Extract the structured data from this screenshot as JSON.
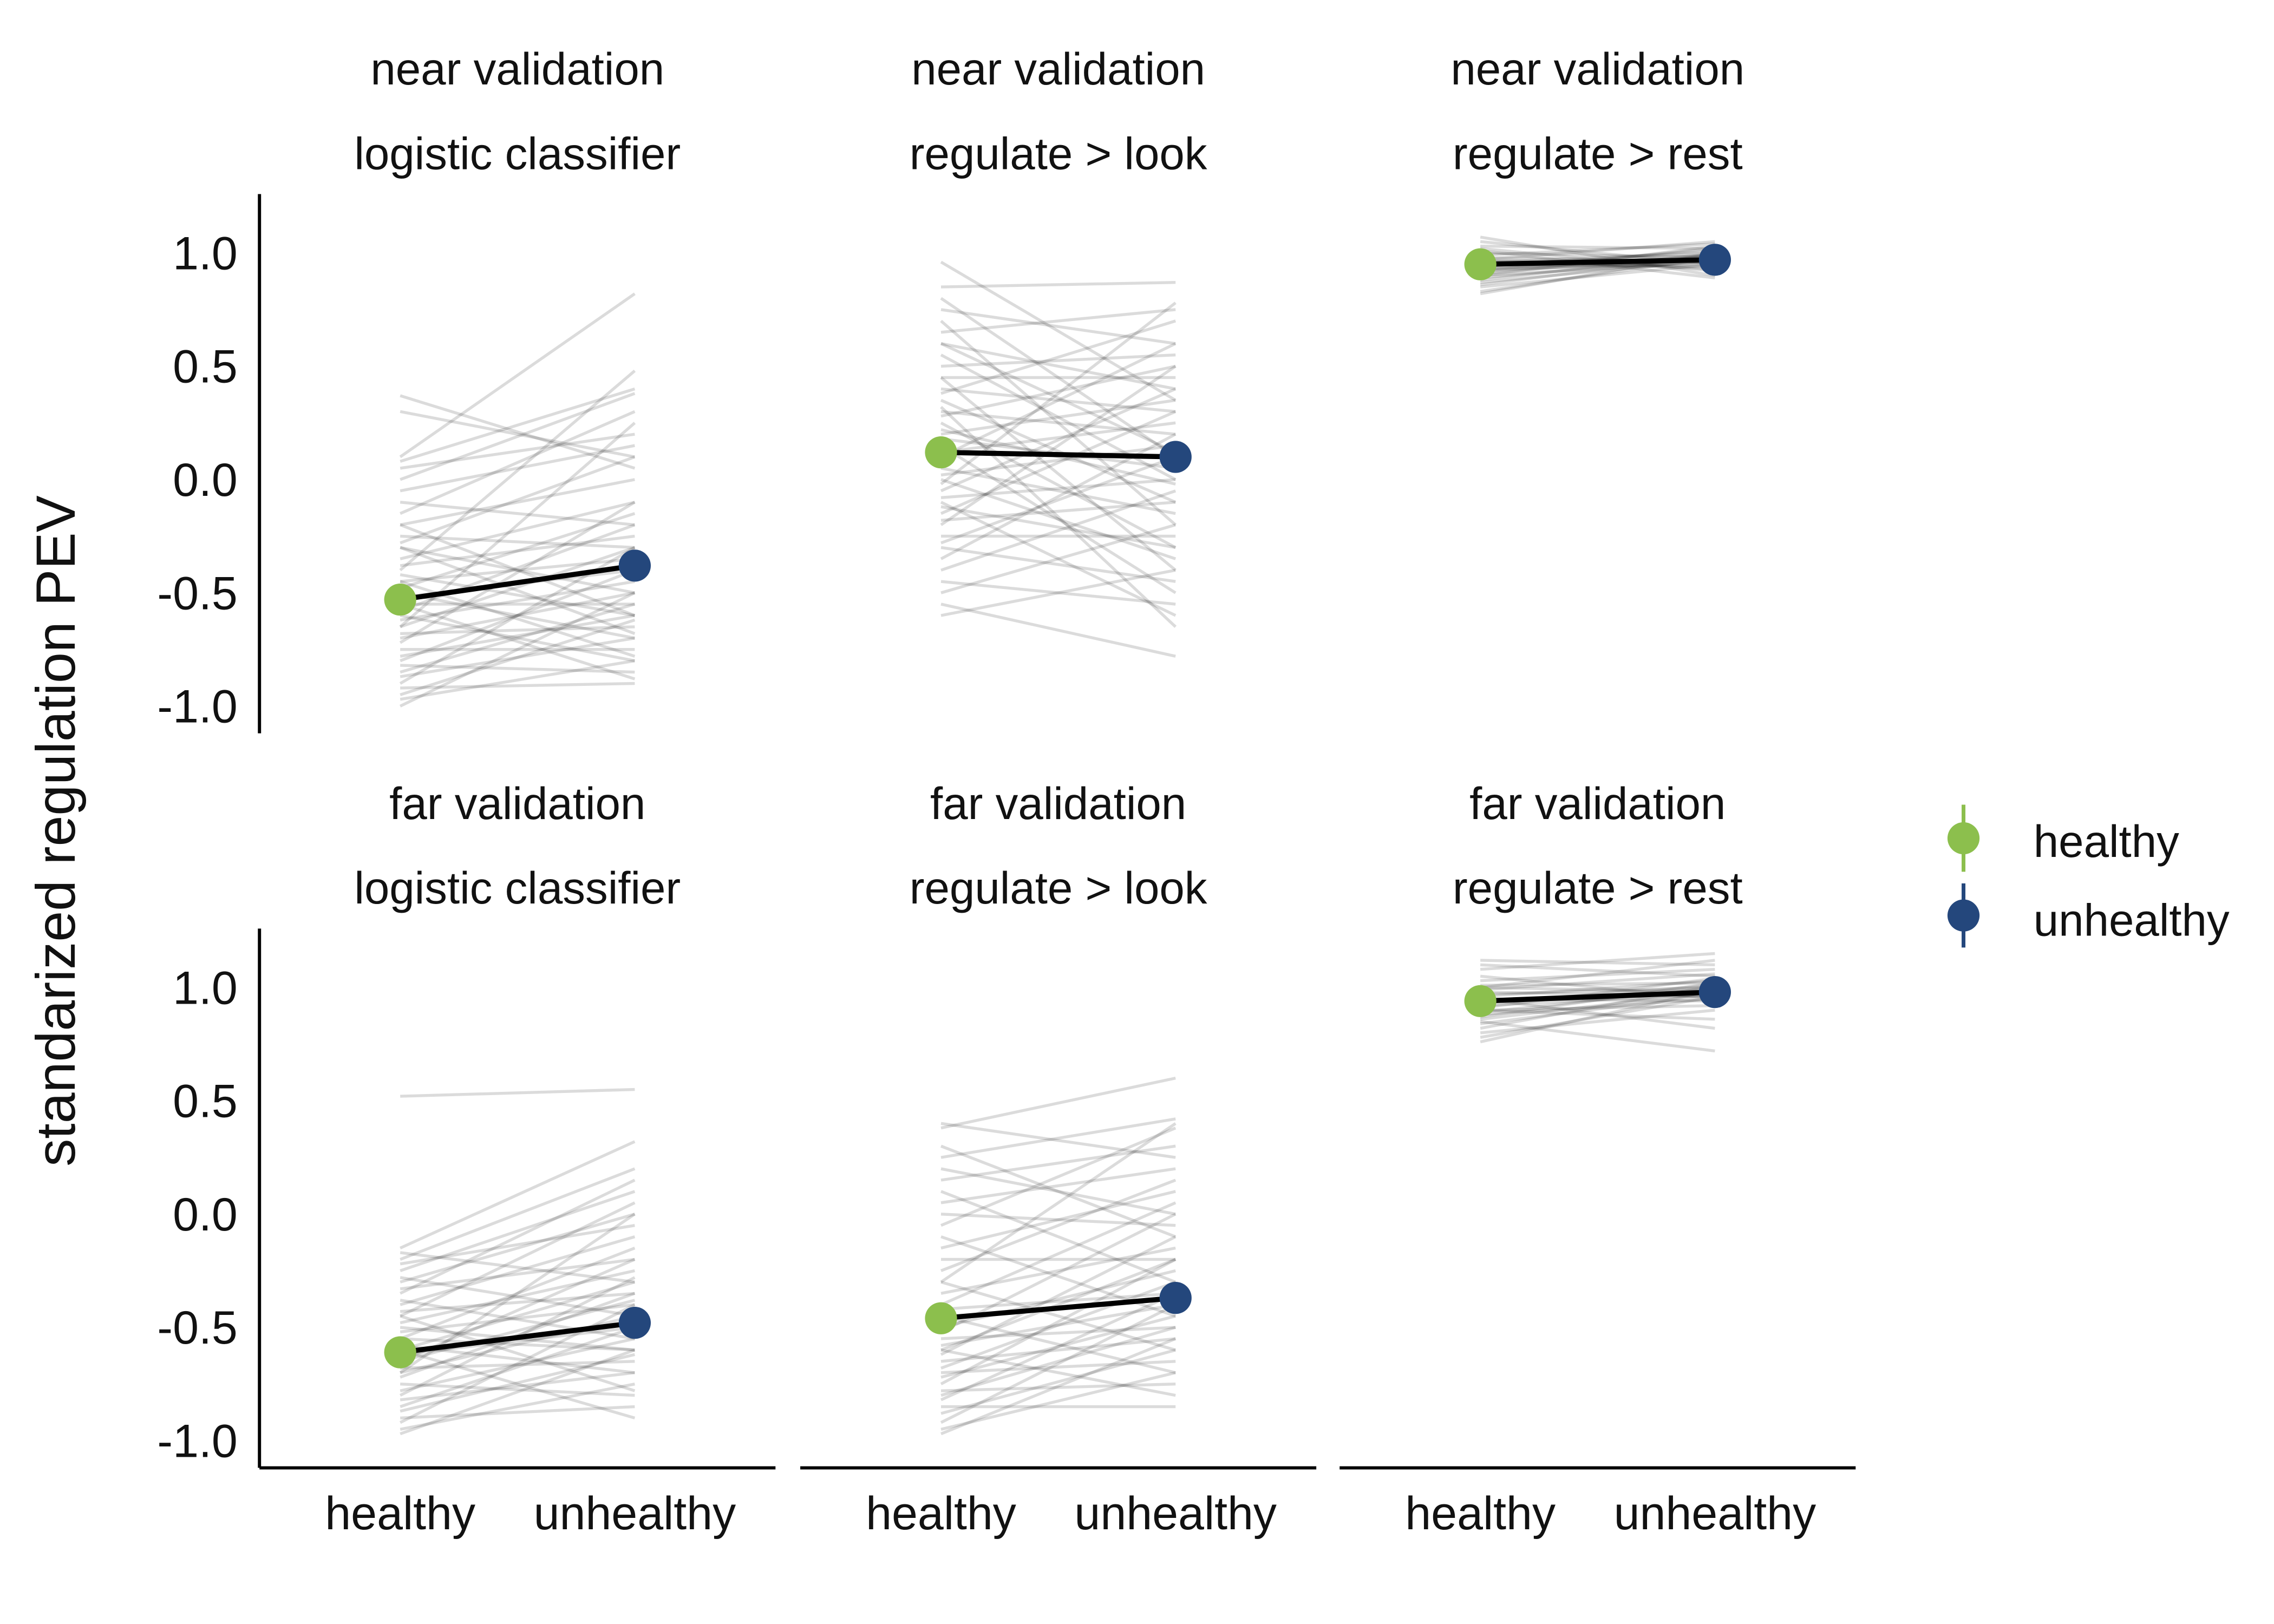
{
  "chart_data": {
    "type": "line",
    "ylabel": "standarized regulation PEV",
    "categories": [
      "healthy",
      "unhealthy"
    ],
    "ylim": [
      -1.12,
      1.26
    ],
    "yticks": [
      {
        "value": 1.0,
        "label": "1.0"
      },
      {
        "value": 0.5,
        "label": "0.5"
      },
      {
        "value": 0.0,
        "label": "0.0"
      },
      {
        "value": -0.5,
        "label": "-0.5"
      },
      {
        "value": -1.0,
        "label": "-1.0"
      }
    ],
    "grid": false,
    "legend": {
      "position": "right",
      "entries": [
        {
          "name": "healthy",
          "color": "#8CBF4D"
        },
        {
          "name": "unhealthy",
          "color": "#24477C"
        }
      ]
    },
    "facets": [
      {
        "title_line1": "near validation",
        "title_line2": "logistic classifier",
        "mean": [
          -0.53,
          -0.38
        ],
        "subjects": [
          [
            0.37,
            0.05
          ],
          [
            0.3,
            0.1
          ],
          [
            0.1,
            0.82
          ],
          [
            0.08,
            0.4
          ],
          [
            0.05,
            0.2
          ],
          [
            0.0,
            0.38
          ],
          [
            -0.05,
            0.15
          ],
          [
            -0.1,
            -0.2
          ],
          [
            -0.15,
            0.3
          ],
          [
            -0.2,
            0.0
          ],
          [
            -0.25,
            -0.3
          ],
          [
            -0.28,
            0.1
          ],
          [
            -0.3,
            -0.5
          ],
          [
            -0.35,
            -0.1
          ],
          [
            -0.38,
            -0.25
          ],
          [
            -0.4,
            0.48
          ],
          [
            -0.42,
            -0.6
          ],
          [
            -0.45,
            -0.35
          ],
          [
            -0.48,
            -0.15
          ],
          [
            -0.5,
            -0.7
          ],
          [
            -0.52,
            -0.4
          ],
          [
            -0.55,
            -0.55
          ],
          [
            -0.58,
            -0.2
          ],
          [
            -0.6,
            -0.8
          ],
          [
            -0.62,
            -0.45
          ],
          [
            -0.65,
            -0.3
          ],
          [
            -0.68,
            -0.65
          ],
          [
            -0.7,
            -0.5
          ],
          [
            -0.72,
            -0.1
          ],
          [
            -0.75,
            -0.75
          ],
          [
            -0.78,
            -0.6
          ],
          [
            -0.8,
            -0.4
          ],
          [
            -0.82,
            -0.85
          ],
          [
            -0.85,
            -0.55
          ],
          [
            -0.87,
            -0.7
          ],
          [
            -0.9,
            -0.3
          ],
          [
            -0.92,
            -0.9
          ],
          [
            -0.95,
            -0.62
          ],
          [
            -0.97,
            -0.8
          ],
          [
            -1.0,
            -0.5
          ],
          [
            -0.3,
            -0.68
          ],
          [
            -0.55,
            -0.88
          ],
          [
            -0.65,
            0.25
          ],
          [
            -0.45,
            -0.78
          ],
          [
            -0.2,
            -0.6
          ]
        ]
      },
      {
        "title_line1": "near validation",
        "title_line2": "regulate > look",
        "mean": [
          0.12,
          0.1
        ],
        "subjects": [
          [
            0.96,
            0.35
          ],
          [
            0.85,
            0.87
          ],
          [
            0.8,
            0.1
          ],
          [
            0.75,
            0.6
          ],
          [
            0.7,
            -0.2
          ],
          [
            0.65,
            0.75
          ],
          [
            0.6,
            0.4
          ],
          [
            0.55,
            0.0
          ],
          [
            0.5,
            0.55
          ],
          [
            0.45,
            -0.4
          ],
          [
            0.4,
            0.3
          ],
          [
            0.38,
            0.7
          ],
          [
            0.35,
            -0.1
          ],
          [
            0.3,
            0.2
          ],
          [
            0.28,
            0.5
          ],
          [
            0.25,
            -0.3
          ],
          [
            0.2,
            0.35
          ],
          [
            0.18,
            0.05
          ],
          [
            0.15,
            -0.5
          ],
          [
            0.12,
            0.25
          ],
          [
            0.1,
            0.6
          ],
          [
            0.05,
            -0.15
          ],
          [
            0.02,
            0.15
          ],
          [
            0.0,
            -0.35
          ],
          [
            -0.05,
            0.4
          ],
          [
            -0.08,
            0.0
          ],
          [
            -0.1,
            -0.6
          ],
          [
            -0.15,
            0.3
          ],
          [
            -0.18,
            -0.1
          ],
          [
            -0.2,
            0.5
          ],
          [
            -0.25,
            -0.25
          ],
          [
            -0.28,
            0.1
          ],
          [
            -0.3,
            -0.45
          ],
          [
            -0.35,
            0.2
          ],
          [
            -0.4,
            -0.05
          ],
          [
            -0.45,
            -0.55
          ],
          [
            -0.5,
            -0.2
          ],
          [
            -0.55,
            -0.78
          ],
          [
            -0.6,
            -0.4
          ],
          [
            0.45,
            0.45
          ],
          [
            0.32,
            -0.65
          ],
          [
            -0.02,
            0.78
          ],
          [
            0.22,
            -0.02
          ],
          [
            -0.12,
            -0.3
          ],
          [
            0.6,
            0.12
          ]
        ]
      },
      {
        "title_line1": "near validation",
        "title_line2": "regulate > rest",
        "mean": [
          0.95,
          0.97
        ],
        "subjects": [
          [
            1.07,
            0.9
          ],
          [
            1.05,
            0.95
          ],
          [
            1.03,
            1.02
          ],
          [
            1.02,
            0.92
          ],
          [
            1.0,
            0.98
          ],
          [
            0.99,
            1.04
          ],
          [
            0.98,
            0.96
          ],
          [
            0.97,
            0.93
          ],
          [
            0.96,
            1.0
          ],
          [
            0.96,
            0.97
          ],
          [
            0.95,
            0.99
          ],
          [
            0.95,
            0.94
          ],
          [
            0.94,
            1.01
          ],
          [
            0.94,
            0.96
          ],
          [
            0.93,
            0.98
          ],
          [
            0.93,
            0.95
          ],
          [
            0.92,
            1.02
          ],
          [
            0.92,
            0.97
          ],
          [
            0.91,
            0.99
          ],
          [
            0.9,
            0.96
          ],
          [
            0.9,
            1.03
          ],
          [
            0.89,
            0.98
          ],
          [
            0.88,
            1.0
          ],
          [
            0.87,
            0.97
          ],
          [
            0.86,
            0.99
          ],
          [
            0.85,
            0.95
          ],
          [
            0.83,
            0.98
          ],
          [
            0.82,
            1.0
          ],
          [
            1.01,
            0.89
          ],
          [
            0.97,
            1.05
          ]
        ]
      },
      {
        "title_line1": "far validation",
        "title_line2": "logistic classifier",
        "mean": [
          -0.61,
          -0.48
        ],
        "subjects": [
          [
            0.52,
            0.55
          ],
          [
            -0.15,
            0.32
          ],
          [
            -0.17,
            -0.3
          ],
          [
            -0.2,
            0.2
          ],
          [
            -0.22,
            -0.05
          ],
          [
            -0.25,
            0.1
          ],
          [
            -0.28,
            -0.45
          ],
          [
            -0.3,
            0.0
          ],
          [
            -0.33,
            -0.2
          ],
          [
            -0.35,
            0.15
          ],
          [
            -0.38,
            -0.55
          ],
          [
            -0.4,
            -0.1
          ],
          [
            -0.43,
            -0.35
          ],
          [
            -0.45,
            0.05
          ],
          [
            -0.48,
            -0.25
          ],
          [
            -0.5,
            -0.6
          ],
          [
            -0.52,
            -0.4
          ],
          [
            -0.55,
            -0.15
          ],
          [
            -0.58,
            -0.7
          ],
          [
            -0.6,
            -0.3
          ],
          [
            -0.62,
            -0.5
          ],
          [
            -0.65,
            -0.2
          ],
          [
            -0.68,
            -0.65
          ],
          [
            -0.7,
            -0.45
          ],
          [
            -0.72,
            -0.35
          ],
          [
            -0.75,
            -0.8
          ],
          [
            -0.78,
            -0.55
          ],
          [
            -0.8,
            -0.28
          ],
          [
            -0.82,
            -0.7
          ],
          [
            -0.85,
            -0.5
          ],
          [
            -0.87,
            -0.62
          ],
          [
            -0.9,
            -0.85
          ],
          [
            -0.92,
            -0.4
          ],
          [
            -0.95,
            -0.75
          ],
          [
            -0.97,
            -0.6
          ],
          [
            -0.6,
            -0.9
          ],
          [
            -0.45,
            -0.78
          ],
          [
            -0.7,
            0.0
          ],
          [
            -0.55,
            -0.6
          ],
          [
            -0.65,
            -0.38
          ]
        ]
      },
      {
        "title_line1": "far validation",
        "title_line2": "regulate > look",
        "mean": [
          -0.46,
          -0.37
        ],
        "subjects": [
          [
            0.4,
            0.25
          ],
          [
            0.38,
            0.6
          ],
          [
            0.3,
            -0.1
          ],
          [
            0.25,
            0.42
          ],
          [
            0.2,
            0.0
          ],
          [
            0.15,
            0.3
          ],
          [
            0.1,
            -0.3
          ],
          [
            0.05,
            0.2
          ],
          [
            0.0,
            -0.05
          ],
          [
            -0.05,
            0.38
          ],
          [
            -0.1,
            -0.45
          ],
          [
            -0.15,
            0.1
          ],
          [
            -0.2,
            -0.2
          ],
          [
            -0.25,
            0.15
          ],
          [
            -0.3,
            -0.6
          ],
          [
            -0.35,
            -0.15
          ],
          [
            -0.4,
            0.05
          ],
          [
            -0.42,
            -0.35
          ],
          [
            -0.45,
            -0.7
          ],
          [
            -0.5,
            -0.25
          ],
          [
            -0.52,
            0.0
          ],
          [
            -0.55,
            -0.5
          ],
          [
            -0.58,
            -0.4
          ],
          [
            -0.6,
            -0.8
          ],
          [
            -0.62,
            -0.1
          ],
          [
            -0.65,
            -0.55
          ],
          [
            -0.68,
            -0.3
          ],
          [
            -0.7,
            -0.65
          ],
          [
            -0.72,
            -0.45
          ],
          [
            -0.75,
            -0.2
          ],
          [
            -0.78,
            -0.75
          ],
          [
            -0.8,
            -0.5
          ],
          [
            -0.82,
            -0.35
          ],
          [
            -0.85,
            -0.85
          ],
          [
            -0.88,
            -0.6
          ],
          [
            -0.92,
            -0.4
          ],
          [
            -0.95,
            -0.7
          ],
          [
            -0.97,
            -0.55
          ],
          [
            -0.3,
            0.4
          ],
          [
            -0.6,
            -0.2
          ]
        ]
      },
      {
        "title_line1": "far validation",
        "title_line2": "regulate > rest",
        "mean": [
          0.94,
          0.98
        ],
        "subjects": [
          [
            1.12,
            1.1
          ],
          [
            1.1,
            1.05
          ],
          [
            1.08,
            1.15
          ],
          [
            1.05,
            0.95
          ],
          [
            1.03,
            1.08
          ],
          [
            1.01,
            1.02
          ],
          [
            1.0,
            0.98
          ],
          [
            0.99,
            1.06
          ],
          [
            0.98,
            0.96
          ],
          [
            0.97,
            1.0
          ],
          [
            0.96,
            1.03
          ],
          [
            0.95,
            0.94
          ],
          [
            0.94,
            0.99
          ],
          [
            0.93,
            1.01
          ],
          [
            0.92,
            0.97
          ],
          [
            0.91,
            1.04
          ],
          [
            0.9,
            0.92
          ],
          [
            0.89,
            1.0
          ],
          [
            0.88,
            0.95
          ],
          [
            0.87,
            1.02
          ],
          [
            0.86,
            0.98
          ],
          [
            0.85,
            0.72
          ],
          [
            0.84,
            0.97
          ],
          [
            0.82,
            1.01
          ],
          [
            0.8,
            0.9
          ],
          [
            0.78,
            0.96
          ],
          [
            0.76,
            0.99
          ],
          [
            0.95,
            0.82
          ],
          [
            1.0,
            1.12
          ],
          [
            0.9,
            0.86
          ]
        ]
      }
    ]
  }
}
